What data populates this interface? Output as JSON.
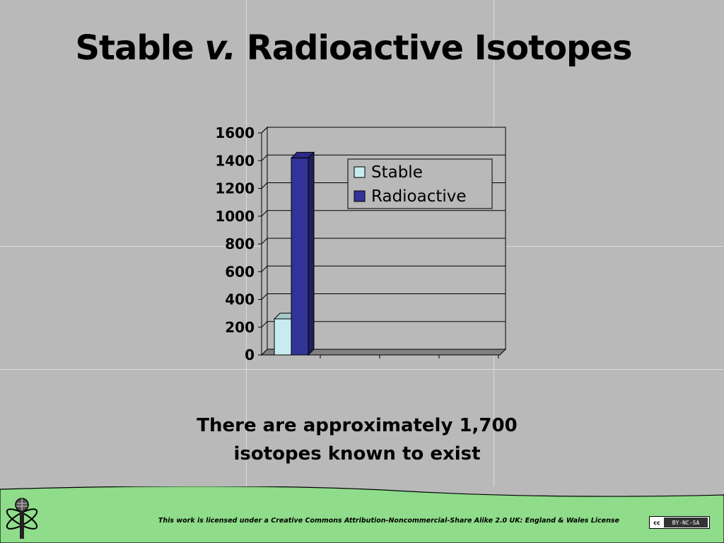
{
  "slide": {
    "title_part1": "Stable",
    "title_italic": "v.",
    "title_part2": "Radioactive Isotopes",
    "subtitle_line1": "There are approximately 1,700",
    "subtitle_line2": "isotopes known to exist"
  },
  "footer": {
    "license_text": "This work is licensed under a Creative Commons Attribution-Noncommercial-Share Alike 2.0 UK: England & Wales License",
    "badge_cc": "cc",
    "badge_text": "BY-NC-SA",
    "logo_icon": "microphone-atom-icon"
  },
  "colors": {
    "background": "#b9b9b9",
    "stable": "#c6ecef",
    "radioactive": "#333399",
    "footer_green": "#8fdc8a"
  },
  "chart_data": {
    "type": "bar",
    "categories": [
      ""
    ],
    "series": [
      {
        "name": "Stable",
        "values": [
          260
        ],
        "color": "#c6ecef"
      },
      {
        "name": "Radioactive",
        "values": [
          1420
        ],
        "color": "#333399"
      }
    ],
    "ylim": [
      0,
      1600
    ],
    "yticks": [
      "0",
      "200",
      "400",
      "600",
      "800",
      "1000",
      "1200",
      "1400",
      "1600"
    ],
    "grid": true,
    "legend_position": "top-right",
    "style": "3d-column"
  }
}
